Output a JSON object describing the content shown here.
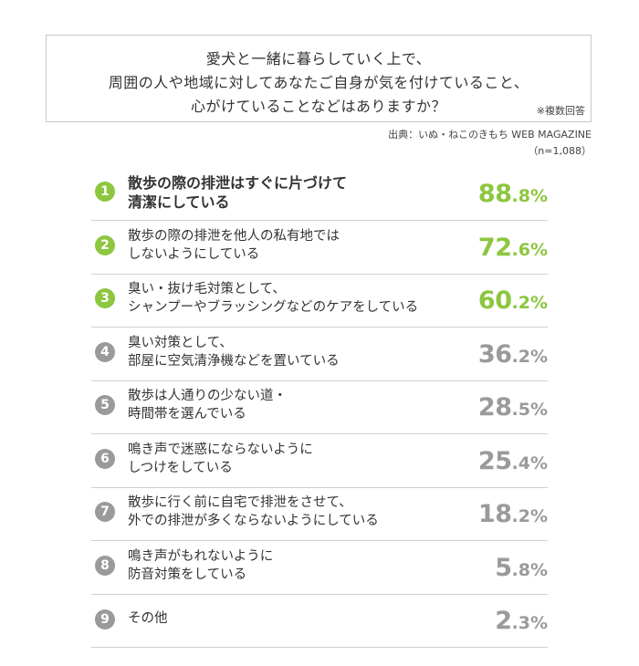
{
  "question": {
    "lines": [
      "愛犬と一緒に暮らしていく上で、",
      "周囲の人や地域に対してあなたご自身が気を付けていること、",
      "心がけていることなどはありますか？"
    ],
    "note": "※複数回答"
  },
  "source": "出典：いぬ・ねこのきもち WEB MAGAZINE",
  "sample": "（n=1,088）",
  "colors": {
    "highlight": "#8dc63f",
    "muted": "#9a9a9a",
    "text": "#333333",
    "rule": "#cfcfcf"
  },
  "chart_data": {
    "type": "table",
    "unit": "%",
    "items": [
      {
        "rank": "1",
        "lines": [
          "散歩の際の排泄はすぐに片づけて",
          "清潔にしている"
        ],
        "int": "88",
        "dec": ".8",
        "value": 88.8,
        "highlight": true,
        "bold": true
      },
      {
        "rank": "2",
        "lines": [
          "散歩の際の排泄を他人の私有地では",
          "しないようにしている"
        ],
        "int": "72",
        "dec": ".6",
        "value": 72.6,
        "highlight": true,
        "bold": false
      },
      {
        "rank": "3",
        "lines": [
          "臭い・抜け毛対策として、",
          "シャンプーやブラッシングなどのケアをしている"
        ],
        "int": "60",
        "dec": ".2",
        "value": 60.2,
        "highlight": true,
        "bold": false
      },
      {
        "rank": "4",
        "lines": [
          "臭い対策として、",
          "部屋に空気清浄機などを置いている"
        ],
        "int": "36",
        "dec": ".2",
        "value": 36.2,
        "highlight": false,
        "bold": false
      },
      {
        "rank": "5",
        "lines": [
          "散歩は人通りの少ない道・",
          "時間帯を選んでいる"
        ],
        "int": "28",
        "dec": ".5",
        "value": 28.5,
        "highlight": false,
        "bold": false
      },
      {
        "rank": "6",
        "lines": [
          "鳴き声で迷惑にならないように",
          "しつけをしている"
        ],
        "int": "25",
        "dec": ".4",
        "value": 25.4,
        "highlight": false,
        "bold": false
      },
      {
        "rank": "7",
        "lines": [
          "散歩に行く前に自宅で排泄をさせて、",
          "外での排泄が多くならないようにしている"
        ],
        "int": "18",
        "dec": ".2",
        "value": 18.2,
        "highlight": false,
        "bold": false
      },
      {
        "rank": "8",
        "lines": [
          "鳴き声がもれないように",
          "防音対策をしている"
        ],
        "int": "5",
        "dec": ".8",
        "value": 5.8,
        "highlight": false,
        "bold": false
      },
      {
        "rank": "9",
        "lines": [
          "その他"
        ],
        "int": "2",
        "dec": ".3",
        "value": 2.3,
        "highlight": false,
        "bold": false
      }
    ]
  }
}
